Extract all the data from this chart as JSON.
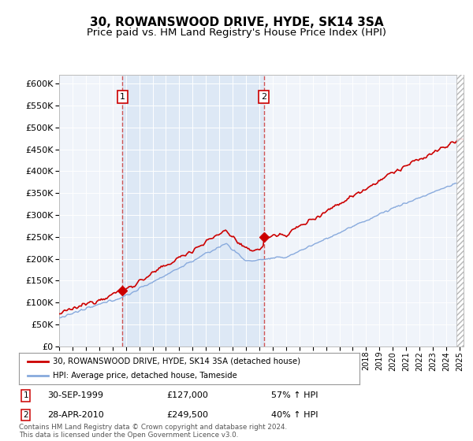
{
  "title": "30, ROWANSWOOD DRIVE, HYDE, SK14 3SA",
  "subtitle": "Price paid vs. HM Land Registry's House Price Index (HPI)",
  "ylim": [
    0,
    620000
  ],
  "yticks": [
    0,
    50000,
    100000,
    150000,
    200000,
    250000,
    300000,
    350000,
    400000,
    450000,
    500000,
    550000,
    600000
  ],
  "xlim": [
    1995.0,
    2025.3
  ],
  "background_color": "#ffffff",
  "plot_bg_color": "#dde8f5",
  "grid_color": "#cccccc",
  "red_line_color": "#cc0000",
  "blue_line_color": "#88aadd",
  "dashed_red_color": "#cc4444",
  "transaction1": {
    "year": 1999.75,
    "price": 127000,
    "label": "1",
    "date": "30-SEP-1999",
    "hpi_pct": "57% ↑ HPI"
  },
  "transaction2": {
    "year": 2010.33,
    "price": 249500,
    "label": "2",
    "date": "28-APR-2010",
    "hpi_pct": "40% ↑ HPI"
  },
  "legend_entry1": "30, ROWANSWOOD DRIVE, HYDE, SK14 3SA (detached house)",
  "legend_entry2": "HPI: Average price, detached house, Tameside",
  "footer": "Contains HM Land Registry data © Crown copyright and database right 2024.\nThis data is licensed under the Open Government Licence v3.0.",
  "title_fontsize": 11,
  "subtitle_fontsize": 9.5
}
